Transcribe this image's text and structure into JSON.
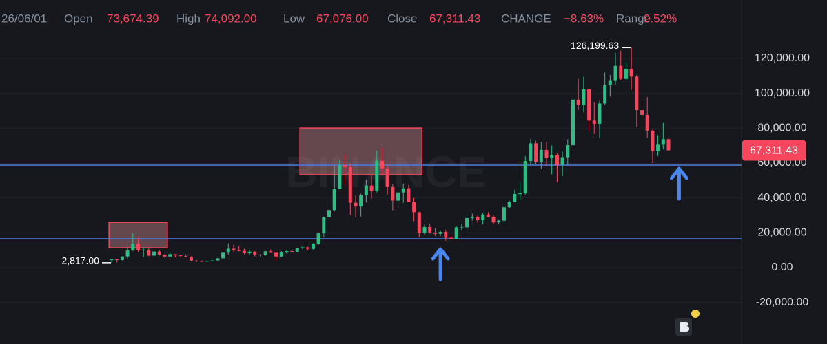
{
  "header": {
    "date": "26/06/01",
    "open_label": "Open",
    "open": "73,674.39",
    "high_label": "High",
    "high": "74,092.00",
    "low_label": "Low",
    "low": "67,076.00",
    "close_label": "Close",
    "close": "67,311.43",
    "change_label": "CHANGE",
    "change": "−8.63%",
    "range_label": "Range",
    "range": "9.52%"
  },
  "chart_data": {
    "type": "candlestick",
    "watermark": "BINANCE",
    "up_color": "#2ebd85",
    "down_color": "#f6465d",
    "ylim": [
      -43816,
      153553
    ],
    "yticks": [
      {
        "value": -20000,
        "label": "-20,000.00"
      },
      {
        "value": 0,
        "label": "0.00"
      },
      {
        "value": 20000,
        "label": "20,000.00"
      },
      {
        "value": 40000,
        "label": "40,000.00"
      },
      {
        "value": 60000,
        "label": "60,000.00"
      },
      {
        "value": 80000,
        "label": "80,000.00"
      },
      {
        "value": 100000,
        "label": "100,000.00"
      },
      {
        "value": 120000,
        "label": "120,000.00"
      }
    ],
    "grid": true,
    "open": [
      4261,
      4689,
      4378,
      6463,
      9838,
      13716,
      10285,
      10326,
      6923,
      9246,
      7494,
      6391,
      7730,
      7025,
      6626,
      6371,
      4041,
      3742,
      3458,
      3813,
      4105,
      5350,
      8574,
      10854,
      10081,
      9588,
      8289,
      9140,
      7541,
      7195,
      9352,
      8523,
      6410,
      8620,
      9448,
      9138,
      11335,
      11649,
      10776,
      13791,
      19695,
      28923,
      33092,
      45135,
      58741,
      57694,
      37253,
      35045,
      41461,
      47100,
      43824,
      61300,
      56950,
      46216,
      38466,
      43160,
      45510,
      37630,
      31801,
      19942,
      23293,
      20050,
      19423,
      20490,
      17164,
      16542,
      23125,
      23141,
      28465,
      29233,
      27210,
      30472,
      29232,
      25941,
      26962,
      34639,
      37723,
      42283,
      42580,
      61130,
      71280,
      60672,
      67540,
      62772,
      64628,
      58974,
      63327,
      70215,
      96407,
      93576,
      102429,
      84350,
      82550,
      94172,
      104591,
      107135,
      115764,
      108246,
      114048,
      109608,
      90360,
      87650,
      78600,
      66900,
      70500,
      73674.39
    ],
    "high": [
      4745,
      4939,
      6470,
      11300,
      19798,
      17176,
      11786,
      11690,
      9765,
      10020,
      7754,
      8507,
      7750,
      7410,
      7680,
      6540,
      4312,
      4140,
      4200,
      4140,
      5600,
      9074,
      13970,
      13200,
      12325,
      10905,
      10370,
      9513,
      7750,
      9578,
      10500,
      9188,
      9468,
      10067,
      10380,
      11444,
      12468,
      12050,
      14100,
      19863,
      29300,
      41950,
      58352,
      61844,
      64854,
      59592,
      41330,
      42448,
      50500,
      52920,
      67000,
      69000,
      59053,
      47990,
      45821,
      48190,
      47444,
      40023,
      31982,
      24668,
      25211,
      22799,
      21085,
      21473,
      18387,
      23960,
      25250,
      29184,
      31000,
      29820,
      31431,
      31804,
      30244,
      27483,
      35198,
      38450,
      44700,
      48969,
      63913,
      73777,
      72797,
      71979,
      71997,
      70079,
      65659,
      66498,
      73620,
      99588,
      108353,
      109588,
      102500,
      95000,
      95758,
      111980,
      110530,
      123218,
      124474,
      117900,
      126199.63,
      110600,
      94600,
      97900,
      79400,
      76000,
      83000,
      74092
    ],
    "low": [
      2817,
      3000,
      4110,
      5325,
      9500,
      9035,
      6000,
      6600,
      6430,
      7032,
      5755,
      6070,
      5880,
      6100,
      6205,
      3652,
      3156,
      3349,
      3400,
      3733,
      4081,
      5300,
      7451,
      9070,
      9320,
      7710,
      7300,
      6515,
      6435,
      6871,
      8450,
      3782,
      6150,
      8117,
      8833,
      8893,
      10518,
      9825,
      10374,
      13195,
      17572,
      28130,
      32296,
      44950,
      47045,
      30000,
      28805,
      29278,
      37332,
      39600,
      43283,
      53256,
      42000,
      32917,
      34322,
      37155,
      37578,
      26700,
      17622,
      18782,
      19520,
      18125,
      18190,
      15476,
      16256,
      16499,
      21351,
      19549,
      26942,
      25811,
      24800,
      28861,
      25166,
      24901,
      26538,
      34097,
      37615,
      38555,
      41884,
      59005,
      59191,
      56552,
      58402,
      53485,
      49000,
      52550,
      58946,
      66835,
      90500,
      89256,
      78258,
      76606,
      74508,
      93377,
      98200,
      105100,
      107350,
      107255,
      102000,
      80600,
      84400,
      74600,
      60000,
      64000,
      68000,
      67076
    ],
    "close": [
      4689,
      4378,
      6463,
      9838,
      13716,
      10285,
      10326,
      6923,
      9246,
      7494,
      6391,
      7730,
      7025,
      6626,
      6371,
      4041,
      3742,
      3458,
      3813,
      4105,
      5350,
      8574,
      10854,
      10081,
      9588,
      8289,
      9140,
      7541,
      7195,
      9352,
      8523,
      6410,
      8620,
      9448,
      9138,
      11335,
      11649,
      10776,
      13791,
      19695,
      28923,
      33092,
      45135,
      58741,
      57694,
      37253,
      35045,
      41461,
      47100,
      43824,
      61300,
      56950,
      46216,
      38466,
      43160,
      45510,
      37630,
      31801,
      19942,
      23293,
      20050,
      19423,
      20490,
      17164,
      16542,
      23125,
      23141,
      28465,
      29233,
      27210,
      30472,
      29232,
      25941,
      26962,
      34639,
      37723,
      42283,
      42580,
      61130,
      71280,
      60672,
      67540,
      62772,
      64628,
      58974,
      63327,
      70215,
      96407,
      93576,
      102429,
      84350,
      82550,
      94172,
      104591,
      107135,
      115764,
      108246,
      114048,
      109608,
      90360,
      87650,
      78600,
      66900,
      70500,
      73674.39,
      67311.43
    ],
    "annotations": [
      {
        "text": "126,199.63",
        "index": 98,
        "value": 126199.63
      },
      {
        "text": "2,817.00",
        "index": 0,
        "value": 2817
      }
    ],
    "last_price_label": "67,311.43",
    "hlines": [
      {
        "value": 16600,
        "color": "#4a7fe0"
      },
      {
        "value": 58800,
        "color": "#4a7fe0"
      }
    ],
    "boxes": [
      {
        "span": [
          0,
          10
        ],
        "y": [
          11400,
          26000
        ]
      },
      {
        "span": [
          36,
          58
        ],
        "y": [
          53300,
          80100
        ]
      }
    ],
    "arrows": [
      62,
      107
    ]
  }
}
